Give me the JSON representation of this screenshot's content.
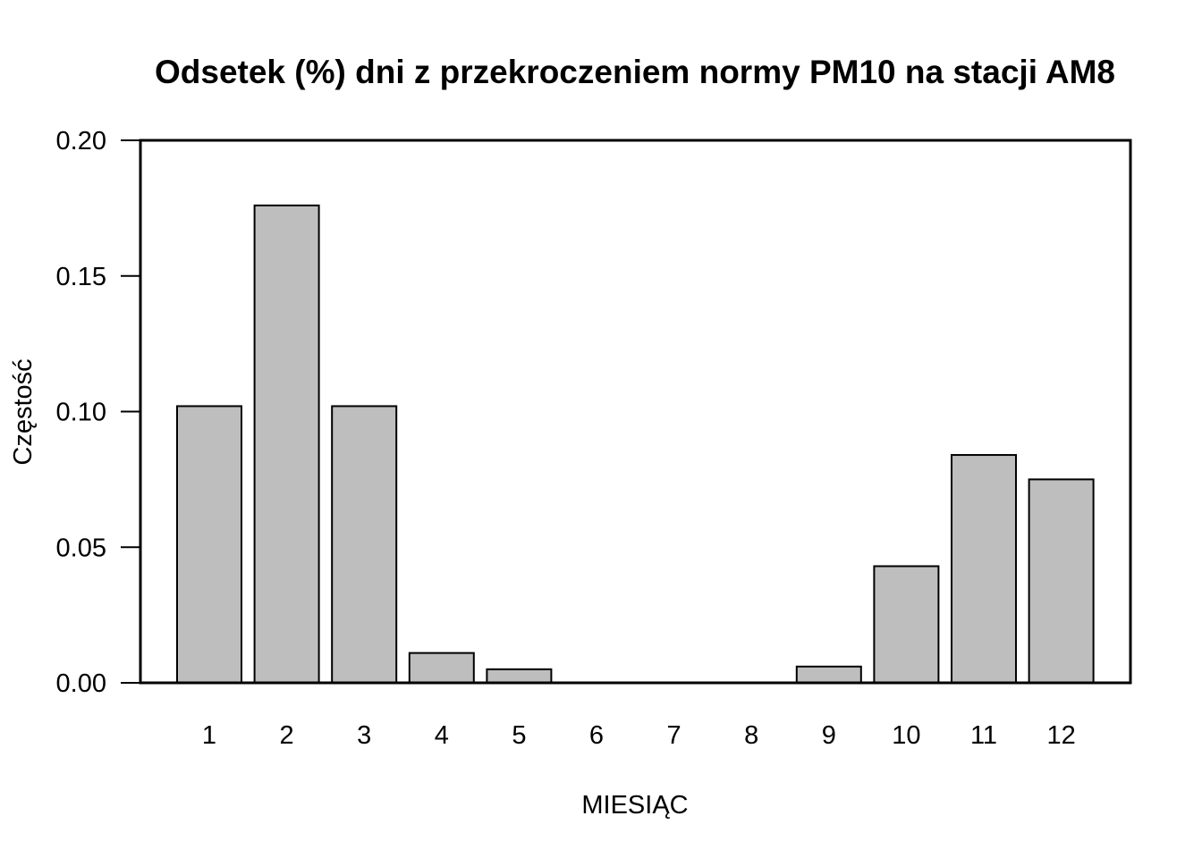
{
  "chart_data": {
    "type": "bar",
    "title": "Odsetek (%) dni z przekroczeniem normy PM10 na stacji AM8",
    "xlabel": "MIESIĄC",
    "ylabel": "Częstość",
    "categories": [
      "1",
      "2",
      "3",
      "4",
      "5",
      "6",
      "7",
      "8",
      "9",
      "10",
      "11",
      "12"
    ],
    "values": [
      0.102,
      0.176,
      0.102,
      0.011,
      0.005,
      0.0,
      0.0,
      0.0,
      0.006,
      0.043,
      0.084,
      0.075
    ],
    "ylim": [
      0,
      0.2
    ],
    "yticks": [
      "0.00",
      "0.05",
      "0.10",
      "0.15",
      "0.20"
    ],
    "bar_color": "#bebebe",
    "grid": false,
    "legend": "none"
  }
}
